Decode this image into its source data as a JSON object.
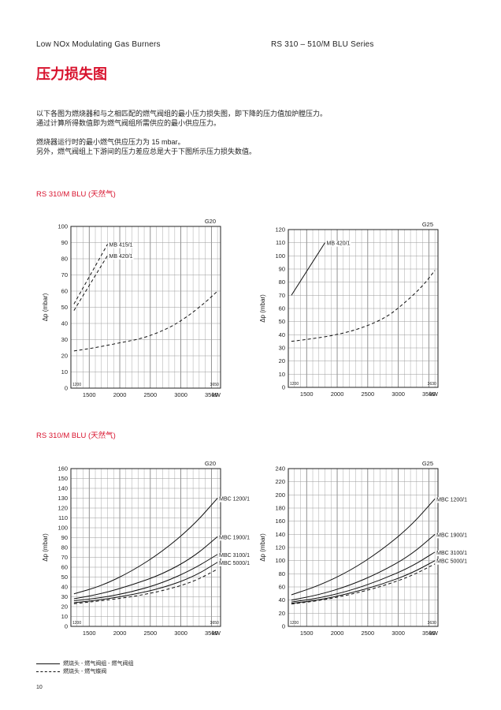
{
  "header": {
    "left": "Low NOx Modulating Gas Burners",
    "right": "RS 310 – 510/M BLU Series"
  },
  "page_title": "压力损失图",
  "intro": {
    "line1": "以下各图为燃烧器和与之相匹配的燃气阀组的最小压力损失图，即下降的压力值加炉膛压力。",
    "line2": "通过计算所得数值即为燃气阀组所需供应的最小供应压力。",
    "line3": "燃烧器运行时的最小燃气供应压力为 15 mbar。",
    "line4": "另外，燃气阀组上下游间的压力差应总是大于下图所示压力损失数值。"
  },
  "section1": "RS 310/M BLU (天然气)",
  "section2": "RS 310/M BLU (天然气)",
  "legend": {
    "solid": "燃烧头 - 燃气阀组 - 燃气阀组",
    "dashed": "燃烧头 - 燃气蝶阀"
  },
  "page_number": "10",
  "chart_data": [
    {
      "type": "line",
      "corner_label": "G20",
      "ylabel": "Δp (mbar)",
      "xlabel": "kW",
      "xlim": [
        1200,
        3650
      ],
      "ylim": [
        0,
        100
      ],
      "x_ticks": [
        1500,
        2000,
        2500,
        3000,
        3500
      ],
      "y_ticks": [
        0,
        10,
        20,
        30,
        40,
        50,
        60,
        70,
        80,
        90,
        100
      ],
      "x_min_label": "1200",
      "x_max_label": "3650",
      "series": [
        {
          "name": "MB 415/1",
          "style": "dashed",
          "x": [
            1250,
            1800
          ],
          "y": [
            52,
            89
          ]
        },
        {
          "name": "MB 420/1",
          "style": "dashed",
          "x": [
            1250,
            1800
          ],
          "y": [
            48,
            82
          ]
        },
        {
          "name": "",
          "style": "dashed",
          "x": [
            1250,
            1600,
            2000,
            2400,
            2800,
            3100,
            3400,
            3600
          ],
          "y": [
            23,
            25,
            28,
            31,
            37,
            44,
            53,
            60
          ]
        }
      ]
    },
    {
      "type": "line",
      "corner_label": "G25",
      "ylabel": "Δp (mbar)",
      "xlabel": "kW",
      "xlim": [
        1200,
        3650
      ],
      "ylim": [
        0,
        120
      ],
      "x_ticks": [
        1500,
        2000,
        2500,
        3000,
        3500
      ],
      "y_ticks": [
        0,
        10,
        20,
        30,
        40,
        50,
        60,
        70,
        80,
        90,
        100,
        110,
        120
      ],
      "x_min_label": "1200",
      "x_max_label": "3630",
      "series": [
        {
          "name": "MB 420/1",
          "style": "solid",
          "x": [
            1250,
            1800
          ],
          "y": [
            70,
            110
          ]
        },
        {
          "name": "",
          "style": "dashed",
          "x": [
            1250,
            1600,
            2000,
            2400,
            2800,
            3100,
            3400,
            3600
          ],
          "y": [
            35,
            37,
            40,
            45,
            53,
            64,
            77,
            89
          ]
        }
      ]
    },
    {
      "type": "line",
      "corner_label": "G20",
      "ylabel": "Δp (mbar)",
      "xlabel": "kW",
      "xlim": [
        1200,
        3650
      ],
      "ylim": [
        0,
        160
      ],
      "x_ticks": [
        1500,
        2000,
        2500,
        3000,
        3500
      ],
      "y_ticks": [
        0,
        10,
        20,
        30,
        40,
        50,
        60,
        70,
        80,
        90,
        100,
        110,
        120,
        130,
        140,
        150,
        160
      ],
      "x_min_label": "1200",
      "x_max_label": "3650",
      "series": [
        {
          "name": "MBC 1200/1",
          "style": "solid",
          "x": [
            1250,
            1700,
            2200,
            2700,
            3200,
            3600
          ],
          "y": [
            33,
            41,
            56,
            76,
            102,
            130
          ]
        },
        {
          "name": "MBC 1900/1",
          "style": "solid",
          "x": [
            1250,
            1700,
            2200,
            2700,
            3200,
            3600
          ],
          "y": [
            28,
            33,
            42,
            53,
            70,
            91
          ]
        },
        {
          "name": "MBC 3100/1",
          "style": "solid",
          "x": [
            1250,
            1700,
            2200,
            2700,
            3200,
            3600
          ],
          "y": [
            26,
            29,
            35,
            44,
            58,
            73
          ]
        },
        {
          "name": "MBC 5000/1",
          "style": "solid",
          "x": [
            1250,
            1700,
            2200,
            2700,
            3200,
            3600
          ],
          "y": [
            24,
            27,
            32,
            39,
            50,
            65
          ]
        },
        {
          "name": "",
          "style": "dashed",
          "x": [
            1250,
            1700,
            2200,
            2700,
            3200,
            3600
          ],
          "y": [
            23,
            26,
            30,
            36,
            45,
            58
          ]
        }
      ]
    },
    {
      "type": "line",
      "corner_label": "G25",
      "ylabel": "Δp (mbar)",
      "xlabel": "kW",
      "xlim": [
        1200,
        3650
      ],
      "ylim": [
        0,
        240
      ],
      "x_ticks": [
        1500,
        2000,
        2500,
        3000,
        3500
      ],
      "y_ticks": [
        0,
        20,
        40,
        60,
        80,
        100,
        120,
        140,
        160,
        180,
        200,
        220,
        240
      ],
      "x_min_label": "1200",
      "x_max_label": "3630",
      "series": [
        {
          "name": "MBC 1200/1",
          "style": "solid",
          "x": [
            1250,
            1700,
            2200,
            2700,
            3200,
            3600
          ],
          "y": [
            48,
            62,
            84,
            114,
            152,
            194
          ]
        },
        {
          "name": "MBC 1900/1",
          "style": "solid",
          "x": [
            1250,
            1700,
            2200,
            2700,
            3200,
            3600
          ],
          "y": [
            40,
            48,
            62,
            82,
            108,
            140
          ]
        },
        {
          "name": "MBC 3100/1",
          "style": "solid",
          "x": [
            1250,
            1700,
            2200,
            2700,
            3200,
            3600
          ],
          "y": [
            37,
            43,
            54,
            70,
            90,
            113
          ]
        },
        {
          "name": "MBC 5000/1",
          "style": "solid",
          "x": [
            1250,
            1700,
            2200,
            2700,
            3200,
            3600
          ],
          "y": [
            35,
            40,
            50,
            63,
            80,
            100
          ]
        },
        {
          "name": "",
          "style": "dashed",
          "x": [
            1250,
            1700,
            2200,
            2700,
            3200,
            3600
          ],
          "y": [
            34,
            39,
            48,
            60,
            76,
            95
          ]
        }
      ]
    }
  ]
}
